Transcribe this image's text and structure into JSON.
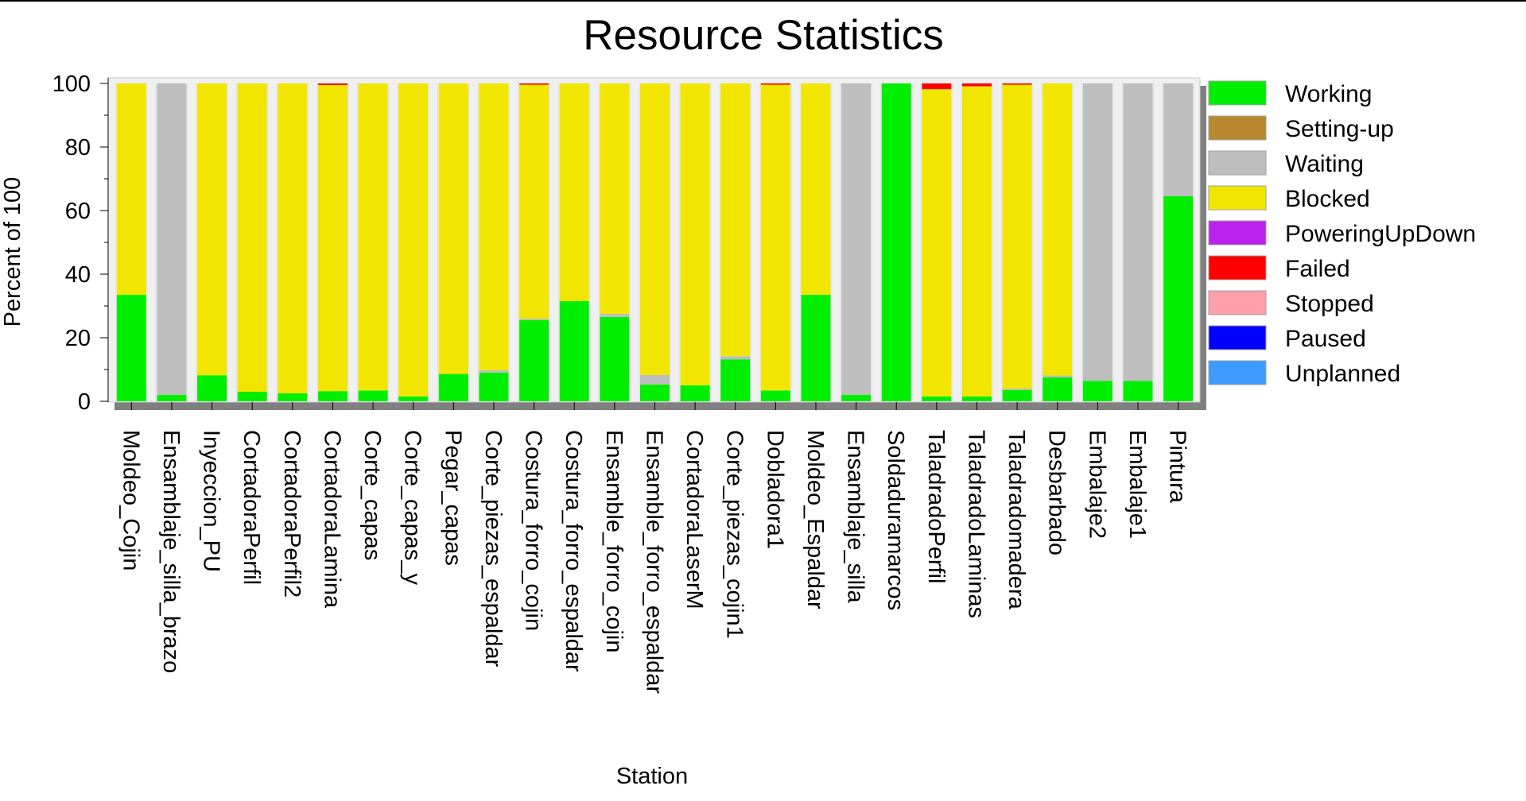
{
  "chart_data": {
    "type": "bar",
    "stacked": true,
    "title": "Resource Statistics",
    "xlabel": "Station",
    "ylabel": "Percent of 100",
    "ylim": [
      0,
      100
    ],
    "yticks": [
      "0",
      "20",
      "40",
      "60",
      "80",
      "100"
    ],
    "grid": false,
    "legend": "right",
    "categories": [
      "Moldeo_Cojin",
      "Ensamblaje_silla_brazo",
      "Inyeccion_PU",
      "CortadoraPerfil",
      "CortadoraPerfil2",
      "CortadoraLamina",
      "Corte_capas",
      "Corte_capas_y",
      "Pegar_capas",
      "Corte_piezas_espaldar",
      "Costura_forro_cojin",
      "Costura_forro_espaldar",
      "Ensamble_forro_cojin",
      "Ensamble_forro_espaldar",
      "CortadoraLaserM",
      "Corte_piezas_cojin1",
      "Dobladora1",
      "Moldeo_Espaldar",
      "Ensamblaje_silla",
      "Soldaduramarcos",
      "TaladradoPerfil",
      "TaladradoLaminas",
      "Taladradomadera",
      "Desbarbado",
      "Embalaje2",
      "Embalaje1",
      "Pintura"
    ],
    "series": [
      {
        "name": "Working",
        "color": "#00ee00",
        "values": [
          33.5,
          2,
          8.2,
          3,
          2.5,
          3.2,
          3.4,
          1.5,
          8.6,
          9,
          25.5,
          31.5,
          26.5,
          5.3,
          5,
          13.2,
          3.4,
          33.5,
          2,
          100,
          1.5,
          1.5,
          3.5,
          7.5,
          6.4,
          6.4,
          64.5
        ]
      },
      {
        "name": "Setting-up",
        "color": "#b8892e",
        "values": [
          0,
          0,
          0,
          0,
          0,
          0,
          0,
          0,
          0,
          0,
          0,
          0,
          0,
          0,
          0,
          0,
          0,
          0,
          0,
          0,
          0,
          0,
          0,
          0,
          0,
          0,
          0
        ]
      },
      {
        "name": "Waiting",
        "color": "#bebebe",
        "values": [
          0,
          98,
          0,
          0,
          0,
          0,
          0,
          0,
          0,
          0.8,
          0.5,
          0,
          1,
          3,
          0,
          1,
          0,
          0,
          98,
          0,
          0,
          0,
          0.5,
          0.6,
          93.6,
          93.6,
          35.5
        ]
      },
      {
        "name": "Blocked",
        "color": "#f2e600",
        "values": [
          66.5,
          0,
          91.8,
          97,
          97.5,
          96.3,
          96.6,
          98.5,
          91.4,
          90.2,
          73.6,
          68.5,
          72.5,
          91.7,
          95,
          85.8,
          96.2,
          66.5,
          0,
          0,
          96.7,
          97.6,
          95.6,
          91.9,
          0,
          0,
          0
        ]
      },
      {
        "name": "PoweringUpDown",
        "color": "#bb22ee",
        "values": [
          0,
          0,
          0,
          0,
          0,
          0,
          0,
          0,
          0,
          0,
          0,
          0,
          0,
          0,
          0,
          0,
          0,
          0,
          0,
          0,
          0,
          0,
          0,
          0,
          0,
          0,
          0
        ]
      },
      {
        "name": "Failed",
        "color": "#ff0000",
        "values": [
          0,
          0,
          0,
          0,
          0,
          0.5,
          0,
          0,
          0,
          0,
          0.4,
          0,
          0,
          0,
          0,
          0,
          0.4,
          0,
          0,
          0,
          1.8,
          0.9,
          0.4,
          0,
          0,
          0,
          0
        ]
      },
      {
        "name": "Stopped",
        "color": "#ff9faa",
        "values": [
          0,
          0,
          0,
          0,
          0,
          0,
          0,
          0,
          0,
          0,
          0,
          0,
          0,
          0,
          0,
          0,
          0,
          0,
          0,
          0,
          0,
          0,
          0,
          0,
          0,
          0,
          0
        ]
      },
      {
        "name": "Paused",
        "color": "#0000ff",
        "values": [
          0,
          0,
          0,
          0,
          0,
          0,
          0,
          0,
          0,
          0,
          0,
          0,
          0,
          0,
          0,
          0,
          0,
          0,
          0,
          0,
          0,
          0,
          0,
          0,
          0,
          0,
          0
        ]
      },
      {
        "name": "Unplanned",
        "color": "#3d9bff",
        "values": [
          0,
          0,
          0,
          0,
          0,
          0,
          0,
          0,
          0,
          0,
          0,
          0,
          0,
          0,
          0,
          0,
          0,
          0,
          0,
          0,
          0,
          0,
          0,
          0,
          0,
          0,
          0
        ]
      }
    ]
  }
}
